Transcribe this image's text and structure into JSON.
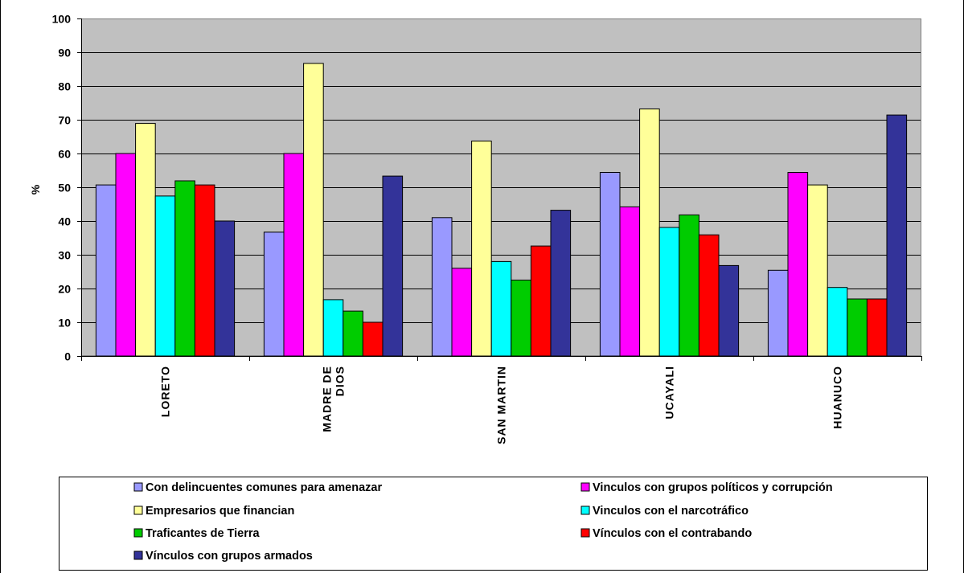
{
  "chart_data": {
    "type": "bar",
    "title": "",
    "xlabel": "",
    "ylabel": "%",
    "ylim": [
      0,
      100
    ],
    "yticks": [
      0,
      10,
      20,
      30,
      40,
      50,
      60,
      70,
      80,
      90,
      100
    ],
    "grid": true,
    "plot_background": "#c0c0c0",
    "legend_position": "bottom",
    "categories": [
      [
        "LORETO"
      ],
      [
        "MADRE DE",
        "DIOS"
      ],
      [
        "SAN MARTIN"
      ],
      [
        "UCAYALI"
      ],
      [
        "HUANUCO"
      ]
    ],
    "series": [
      {
        "name": "Con delincuentes comunes para amenazar",
        "color": "#9999ff",
        "values": [
          50.7,
          36.7,
          41.0,
          54.4,
          25.4
        ]
      },
      {
        "name": "Vinculos con grupos políticos y corrupción",
        "color": "#ff00ff",
        "values": [
          60.0,
          60.0,
          26.0,
          44.2,
          54.4
        ]
      },
      {
        "name": "Empresarios que financian",
        "color": "#ffff99",
        "values": [
          68.9,
          86.7,
          63.7,
          73.2,
          50.7
        ]
      },
      {
        "name": "Vinculos con el narcotráfico",
        "color": "#00ffff",
        "values": [
          47.4,
          16.7,
          28.0,
          38.1,
          20.3
        ]
      },
      {
        "name": "Traficantes de Tierra",
        "color": "#00cc00",
        "values": [
          51.9,
          13.3,
          22.5,
          41.8,
          16.9
        ]
      },
      {
        "name": "Vínculos con el contrabando",
        "color": "#ff0000",
        "values": [
          50.7,
          10.0,
          32.6,
          35.9,
          16.9
        ]
      },
      {
        "name": "Vínculos con grupos armados",
        "color": "#333399",
        "values": [
          40.0,
          53.3,
          43.2,
          26.8,
          71.4
        ]
      }
    ]
  }
}
